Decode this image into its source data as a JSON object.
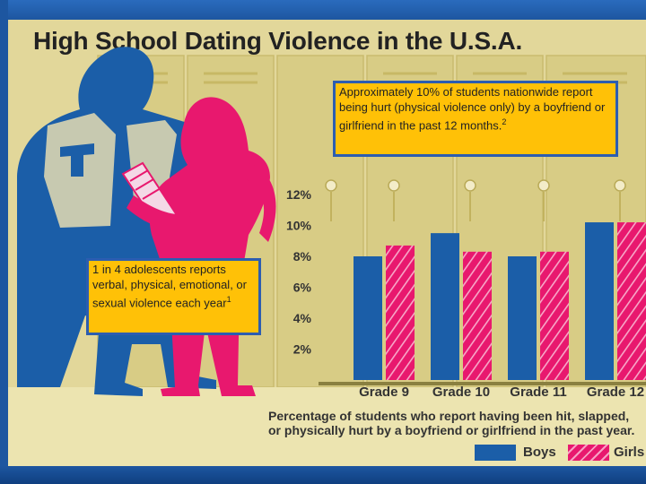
{
  "title": "High School Dating Violence in the U.S.A.",
  "callouts": {
    "hurt": {
      "text": "Approximately 10% of students nationwide report being hurt (physical violence only) by a boyfriend or girlfriend in the past 12 months.",
      "sup": "2"
    },
    "adolescents": {
      "text": "1 in 4 adolescents reports verbal, physical, emotional, or sexual violence each year",
      "sup": "1"
    }
  },
  "chart_data": {
    "type": "bar",
    "categories": [
      "Grade 9",
      "Grade 10",
      "Grade 11",
      "Grade 12"
    ],
    "series": [
      {
        "name": "Boys",
        "values": [
          8.0,
          9.5,
          8.0,
          10.2
        ]
      },
      {
        "name": "Girls",
        "values": [
          8.7,
          8.3,
          8.3,
          10.2
        ]
      }
    ],
    "yticks": [
      "12%",
      "10%",
      "8%",
      "6%",
      "4%",
      "2%"
    ],
    "ytick_values": [
      12,
      10,
      8,
      6,
      4,
      2
    ],
    "ylim": [
      0,
      12
    ],
    "caption": [
      "Percentage of students who report having been hit, slapped,",
      "or physically hurt by a boyfriend or girlfriend in the past year."
    ],
    "legend": {
      "placement": "bottom-right",
      "boys": "Boys",
      "girls": "Girls"
    },
    "colors": {
      "boys": "#1b5ea8",
      "girls": "#e8186e"
    }
  },
  "colors": {
    "frame": "#1f5aa6",
    "callout_fill": "#ffc107",
    "panel": "#e8dfa6"
  }
}
